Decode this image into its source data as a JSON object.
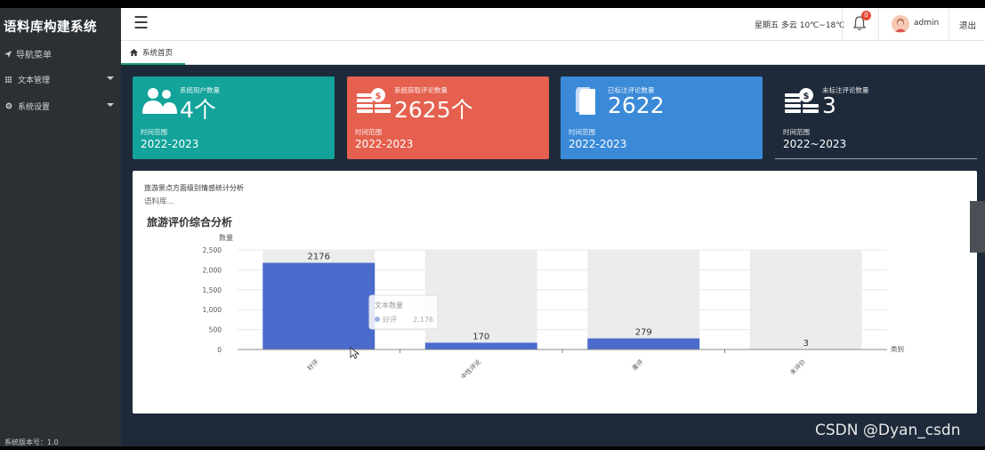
{
  "app": {
    "title": "语料库构建系统",
    "version": "系统版本号：1.0"
  },
  "sidebar": {
    "nav_title": "导航菜单",
    "items": [
      {
        "label": "文本管理",
        "icon": "grid-icon"
      },
      {
        "label": "系统设置",
        "icon": "gear-icon"
      }
    ]
  },
  "header": {
    "menu_icon": "hamburger-icon",
    "weather": "星期五 多云 10℃~18℃",
    "notification_count": "0",
    "username": "admin",
    "logout": "退出"
  },
  "tabs": [
    {
      "label": "系统首页",
      "icon": "home-icon"
    }
  ],
  "cards": [
    {
      "label": "系统用户数量",
      "value": "4个",
      "range_label": "时间范围",
      "range": "2022-2023",
      "color": "#13a39a",
      "icon": "users-icon"
    },
    {
      "label": "系统获取评论数量",
      "value": "2625个",
      "range_label": "时间范围",
      "range": "2022-2023",
      "color": "#e5604e",
      "icon": "coins-icon"
    },
    {
      "label": "已标注评论数量",
      "value": "2622",
      "range_label": "时间范围",
      "range": "2022-2023",
      "color": "#3a8ad8",
      "icon": "documents-icon"
    },
    {
      "label": "未标注评论数量",
      "value": "3",
      "range_label": "时间范围",
      "range": "2022~2023",
      "color": "#1e2a3a",
      "icon": "coins-icon"
    }
  ],
  "panel": {
    "subtitle": "旅游景点方面级别情感统计分析",
    "subtitle2": "语料库..."
  },
  "chart_data": {
    "type": "bar",
    "title": "旅游评价综合分析",
    "ylabel": "数量",
    "xlabel": "类别",
    "ylim": [
      0,
      2500
    ],
    "yticks": [
      "0",
      "500",
      "1,000",
      "1,500",
      "2,000",
      "2,500"
    ],
    "categories": [
      "好评",
      "中性评论",
      "差评",
      "未评价"
    ],
    "series": [
      {
        "name": "文本数量",
        "values": [
          2176,
          170,
          279,
          3
        ]
      }
    ],
    "data_labels": [
      "2176",
      "170",
      "279",
      "3"
    ],
    "tooltip": {
      "title": "文本数量",
      "category": "好评",
      "value": "2,176"
    },
    "bar_color": "#4a6bcc",
    "background_bar_color": "#ececec"
  },
  "watermark": "CSDN @Dyan_csdn"
}
